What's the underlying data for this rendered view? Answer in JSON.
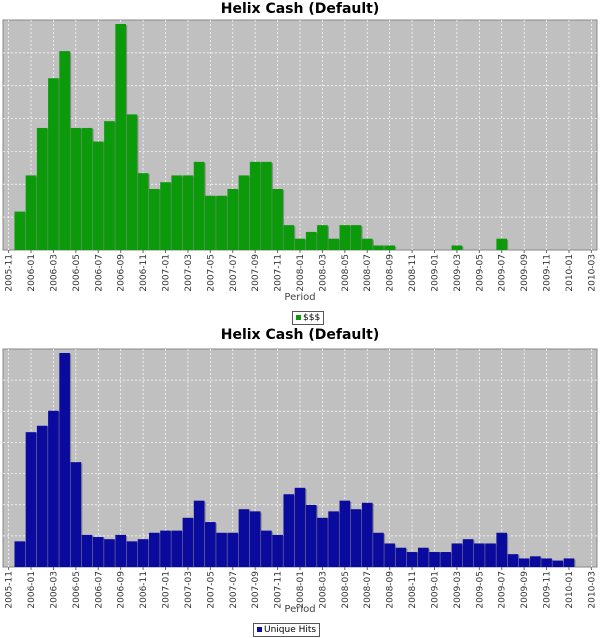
{
  "chart_data": [
    {
      "type": "bar",
      "title": "Helix Cash (Default)",
      "xlabel": "Period",
      "ylabel": "",
      "legend": "bottom",
      "grid": true,
      "color": "#0a9a0a",
      "ylim": [
        0,
        100
      ],
      "categories": [
        "2005-11",
        "2005-12",
        "2006-01",
        "2006-02",
        "2006-03",
        "2006-04",
        "2006-05",
        "2006-06",
        "2006-07",
        "2006-08",
        "2006-09",
        "2006-10",
        "2006-11",
        "2006-12",
        "2007-01",
        "2007-02",
        "2007-03",
        "2007-04",
        "2007-05",
        "2007-06",
        "2007-07",
        "2007-08",
        "2007-09",
        "2007-10",
        "2007-11",
        "2007-12",
        "2008-01",
        "2008-02",
        "2008-03",
        "2008-04",
        "2008-05",
        "2008-06",
        "2008-07",
        "2008-08",
        "2008-09",
        "2008-10",
        "2008-11",
        "2008-12",
        "2009-01",
        "2009-02",
        "2009-03",
        "2009-04",
        "2009-05",
        "2009-06",
        "2009-07",
        "2009-08",
        "2009-09",
        "2009-10",
        "2009-11",
        "2009-12",
        "2010-01",
        "2010-02",
        "2010-03"
      ],
      "tick_labels": [
        "2005-11",
        "2006-01",
        "2006-03",
        "2006-05",
        "2006-07",
        "2006-09",
        "2006-11",
        "2007-01",
        "2007-03",
        "2007-05",
        "2007-07",
        "2007-09",
        "2007-11",
        "2008-01",
        "2008-03",
        "2008-05",
        "2008-07",
        "2008-09",
        "2008-11",
        "2009-01",
        "2009-03",
        "2009-05",
        "2009-07",
        "2009-09",
        "2009-11",
        "2010-01",
        "2010-03"
      ],
      "series": [
        {
          "name": "$$$",
          "values": [
            0,
            17,
            33,
            54,
            76,
            88,
            54,
            54,
            48,
            57,
            100,
            60,
            34,
            27,
            30,
            33,
            33,
            39,
            24,
            24,
            27,
            33,
            39,
            39,
            27,
            11,
            5,
            8,
            11,
            5,
            11,
            11,
            5,
            2,
            2,
            0,
            0,
            0,
            0,
            0,
            2,
            0,
            0,
            0,
            5,
            0,
            0,
            0,
            0,
            0,
            0,
            0,
            0
          ]
        }
      ]
    },
    {
      "type": "bar",
      "title": "Helix Cash (Default)",
      "xlabel": "Period",
      "ylabel": "",
      "legend": "bottom",
      "grid": true,
      "color": "#0a0a9e",
      "ylim": [
        0,
        100
      ],
      "categories": [
        "2005-11",
        "2005-12",
        "2006-01",
        "2006-02",
        "2006-03",
        "2006-04",
        "2006-05",
        "2006-06",
        "2006-07",
        "2006-08",
        "2006-09",
        "2006-10",
        "2006-11",
        "2006-12",
        "2007-01",
        "2007-02",
        "2007-03",
        "2007-04",
        "2007-05",
        "2007-06",
        "2007-07",
        "2007-08",
        "2007-09",
        "2007-10",
        "2007-11",
        "2007-12",
        "2008-01",
        "2008-02",
        "2008-03",
        "2008-04",
        "2008-05",
        "2008-06",
        "2008-07",
        "2008-08",
        "2008-09",
        "2008-10",
        "2008-11",
        "2008-12",
        "2009-01",
        "2009-02",
        "2009-03",
        "2009-04",
        "2009-05",
        "2009-06",
        "2009-07",
        "2009-08",
        "2009-09",
        "2009-10",
        "2009-11",
        "2009-12",
        "2010-01",
        "2010-02",
        "2010-03"
      ],
      "tick_labels": [
        "2005-11",
        "2006-01",
        "2006-03",
        "2006-05",
        "2006-07",
        "2006-09",
        "2006-11",
        "2007-01",
        "2007-03",
        "2007-05",
        "2007-07",
        "2007-09",
        "2007-11",
        "2008-01",
        "2008-03",
        "2008-05",
        "2008-07",
        "2008-09",
        "2008-11",
        "2009-01",
        "2009-03",
        "2009-05",
        "2009-07",
        "2009-09",
        "2009-11",
        "2010-01",
        "2010-03"
      ],
      "series": [
        {
          "name": "Unique Hits",
          "values": [
            0,
            12,
            63,
            66,
            73,
            100,
            49,
            15,
            14,
            13,
            15,
            12,
            13,
            16,
            17,
            17,
            23,
            31,
            21,
            16,
            16,
            27,
            26,
            17,
            15,
            34,
            37,
            29,
            23,
            26,
            31,
            27,
            30,
            16,
            11,
            9,
            7,
            9,
            7,
            7,
            11,
            13,
            11,
            11,
            16,
            6,
            4,
            5,
            4,
            3,
            4,
            0,
            0
          ]
        }
      ]
    }
  ]
}
